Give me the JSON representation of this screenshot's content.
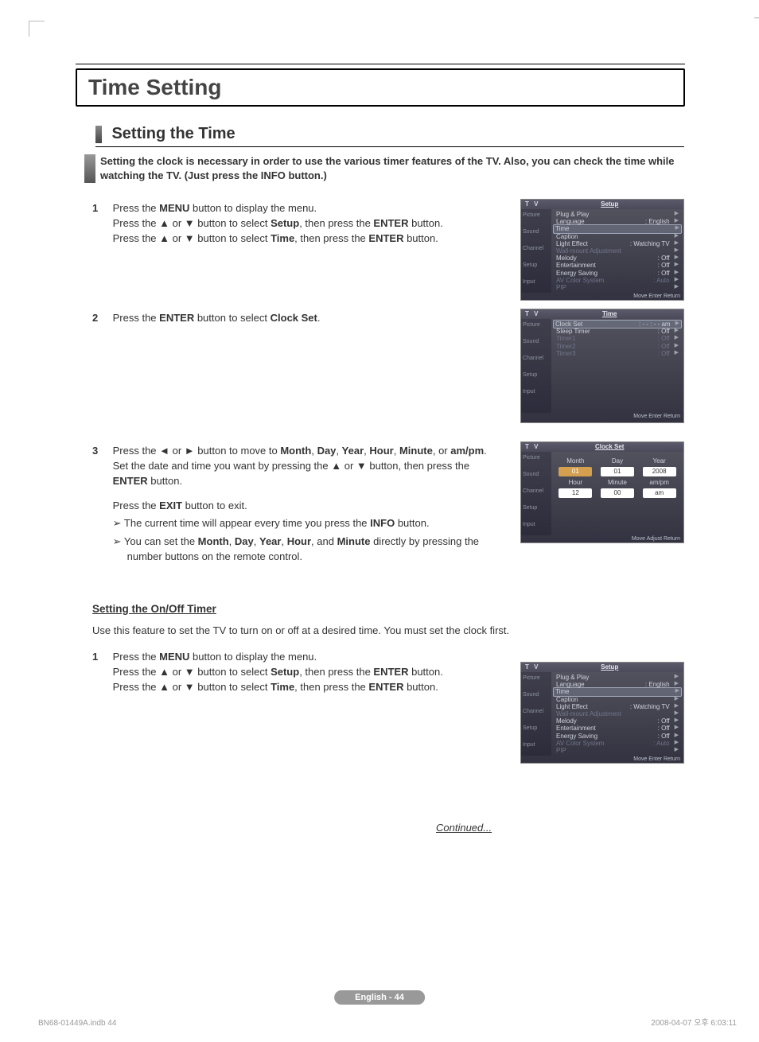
{
  "page_title": "Time Setting",
  "section_title": "Setting the Time",
  "intro": "Setting the clock is necessary in order to use the various timer features of the TV. Also, you can check the time while watching the TV. (Just press the INFO button.)",
  "step1_num": "1",
  "step1_line1a": "Press the ",
  "step1_line1b": " button to display the menu.",
  "step1_line2a": "Press the ▲ or ▼ button to select ",
  "step1_line2b": ", then press the ",
  "step1_line2c": " button.",
  "step1_line3a": "Press the ▲ or ▼ button to select ",
  "step1_line3b": ", then press the ",
  "step1_line3c": " button.",
  "MENU": "MENU",
  "Setup": "Setup",
  "ENTER": "ENTER",
  "Time": "Time",
  "step2_num": "2",
  "step2a": "Press the ",
  "step2b": " button to select ",
  "step2c": ".",
  "ClockSet": "Clock Set",
  "step3_num": "3",
  "step3_line1a": "Press the ◄ or ► button to move to ",
  "Month": "Month",
  "Day": "Day",
  "Year": "Year",
  "Hour": "Hour",
  "Minute": "Minute",
  "ampm": "am/pm",
  "step3_line1b": ". Set the date and time you want by pressing the ▲ or ▼ button, then press the ",
  "step3_line1c": " button.",
  "step3_exitA": "Press the ",
  "EXIT": "EXIT",
  "step3_exitB": " button to exit.",
  "step3_bullet1a": "The current time will appear every time you press the ",
  "INFO": "INFO",
  "step3_bullet1b": " button.",
  "step3_bullet2a": "You can set the ",
  "step3_bullet2b": " directly by pressing the number buttons on the remote control.",
  "and": ", and ",
  "timer_heading": "Setting the On/Off Timer",
  "timer_text": "Use this feature to set the TV to turn on or off at a desired time. You must set the clock first.",
  "continued": "Continued...",
  "page_badge": "English - 44",
  "footer_left": "BN68-01449A.indb   44",
  "footer_right": "2008-04-07   오후 6:03:11",
  "menu1": {
    "tv": "T V",
    "title": "Setup",
    "side": [
      "Picture",
      "Sound",
      "Channel",
      "Setup",
      "Input"
    ],
    "items": [
      {
        "l": "Plug & Play",
        "r": ""
      },
      {
        "l": "Language",
        "r": ": English"
      },
      {
        "l": "Time",
        "r": "",
        "hl": true
      },
      {
        "l": "Caption",
        "r": ""
      },
      {
        "l": "Light Effect",
        "r": ": Watching TV"
      },
      {
        "l": "Wall-mount Adjustment",
        "r": "",
        "muted": true
      },
      {
        "l": "Melody",
        "r": ": Off"
      },
      {
        "l": "Entertainment",
        "r": ": Off"
      },
      {
        "l": "Energy Saving",
        "r": ": Off"
      },
      {
        "l": "AV Color System",
        "r": ": Auto",
        "muted": true
      },
      {
        "l": "PIP",
        "r": "",
        "muted": true
      }
    ],
    "foot": "Move     Enter     Return"
  },
  "menu2": {
    "tv": "T V",
    "title": "Time",
    "side": [
      "Picture",
      "Sound",
      "Channel",
      "Setup",
      "Input"
    ],
    "items": [
      {
        "l": "Clock Set",
        "r": ": - - : - - am",
        "hl": true
      },
      {
        "l": "Sleep Timer",
        "r": ": Off"
      },
      {
        "l": "Timer1",
        "r": ": Off",
        "muted": true
      },
      {
        "l": "Timer2",
        "r": ": Off",
        "muted": true
      },
      {
        "l": "Timer3",
        "r": ": Off",
        "muted": true
      }
    ],
    "foot": "Move     Enter     Return"
  },
  "menu3": {
    "tv": "T V",
    "title": "Clock Set",
    "side": [
      "Picture",
      "Sound",
      "Channel",
      "Setup",
      "Input"
    ],
    "labels1": [
      "Month",
      "Day",
      "Year"
    ],
    "vals1": [
      "01",
      "01",
      "2008"
    ],
    "labels2": [
      "Hour",
      "Minute",
      "am/pm"
    ],
    "vals2": [
      "12",
      "00",
      "am"
    ],
    "foot": "Move     Adjust     Return"
  }
}
